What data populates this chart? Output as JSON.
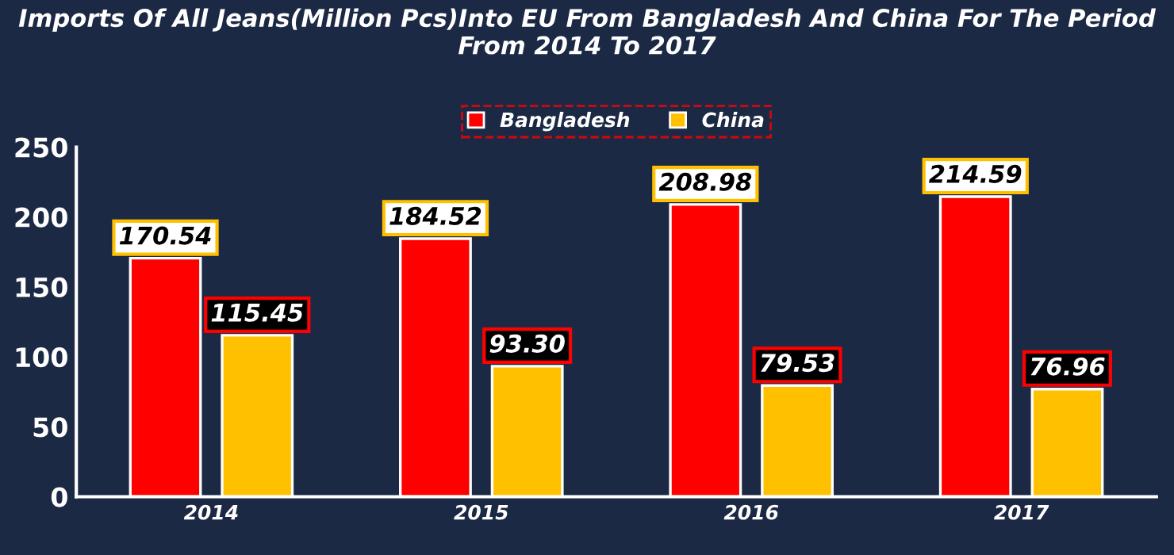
{
  "chart_data": {
    "type": "bar",
    "title": "Imports Of All Jeans(Million Pcs)Into EU From Bangladesh And China For The Period From 2014 To 2017",
    "categories": [
      "2014",
      "2015",
      "2016",
      "2017"
    ],
    "series": [
      {
        "name": "Bangladesh",
        "color": "#ff0000",
        "values": [
          170.54,
          184.52,
          208.98,
          214.59
        ],
        "value_labels": [
          "170.54",
          "184.52",
          "208.98",
          "214.59"
        ]
      },
      {
        "name": "China",
        "color": "#ffc000",
        "values": [
          115.45,
          93.3,
          79.53,
          76.96
        ],
        "value_labels": [
          "115.45",
          "93.30",
          "79.53",
          "76.96"
        ]
      }
    ],
    "ylim": [
      0,
      250
    ],
    "yticks": [
      0,
      50,
      100,
      150,
      200,
      250
    ],
    "grid": false,
    "legend": "top"
  }
}
